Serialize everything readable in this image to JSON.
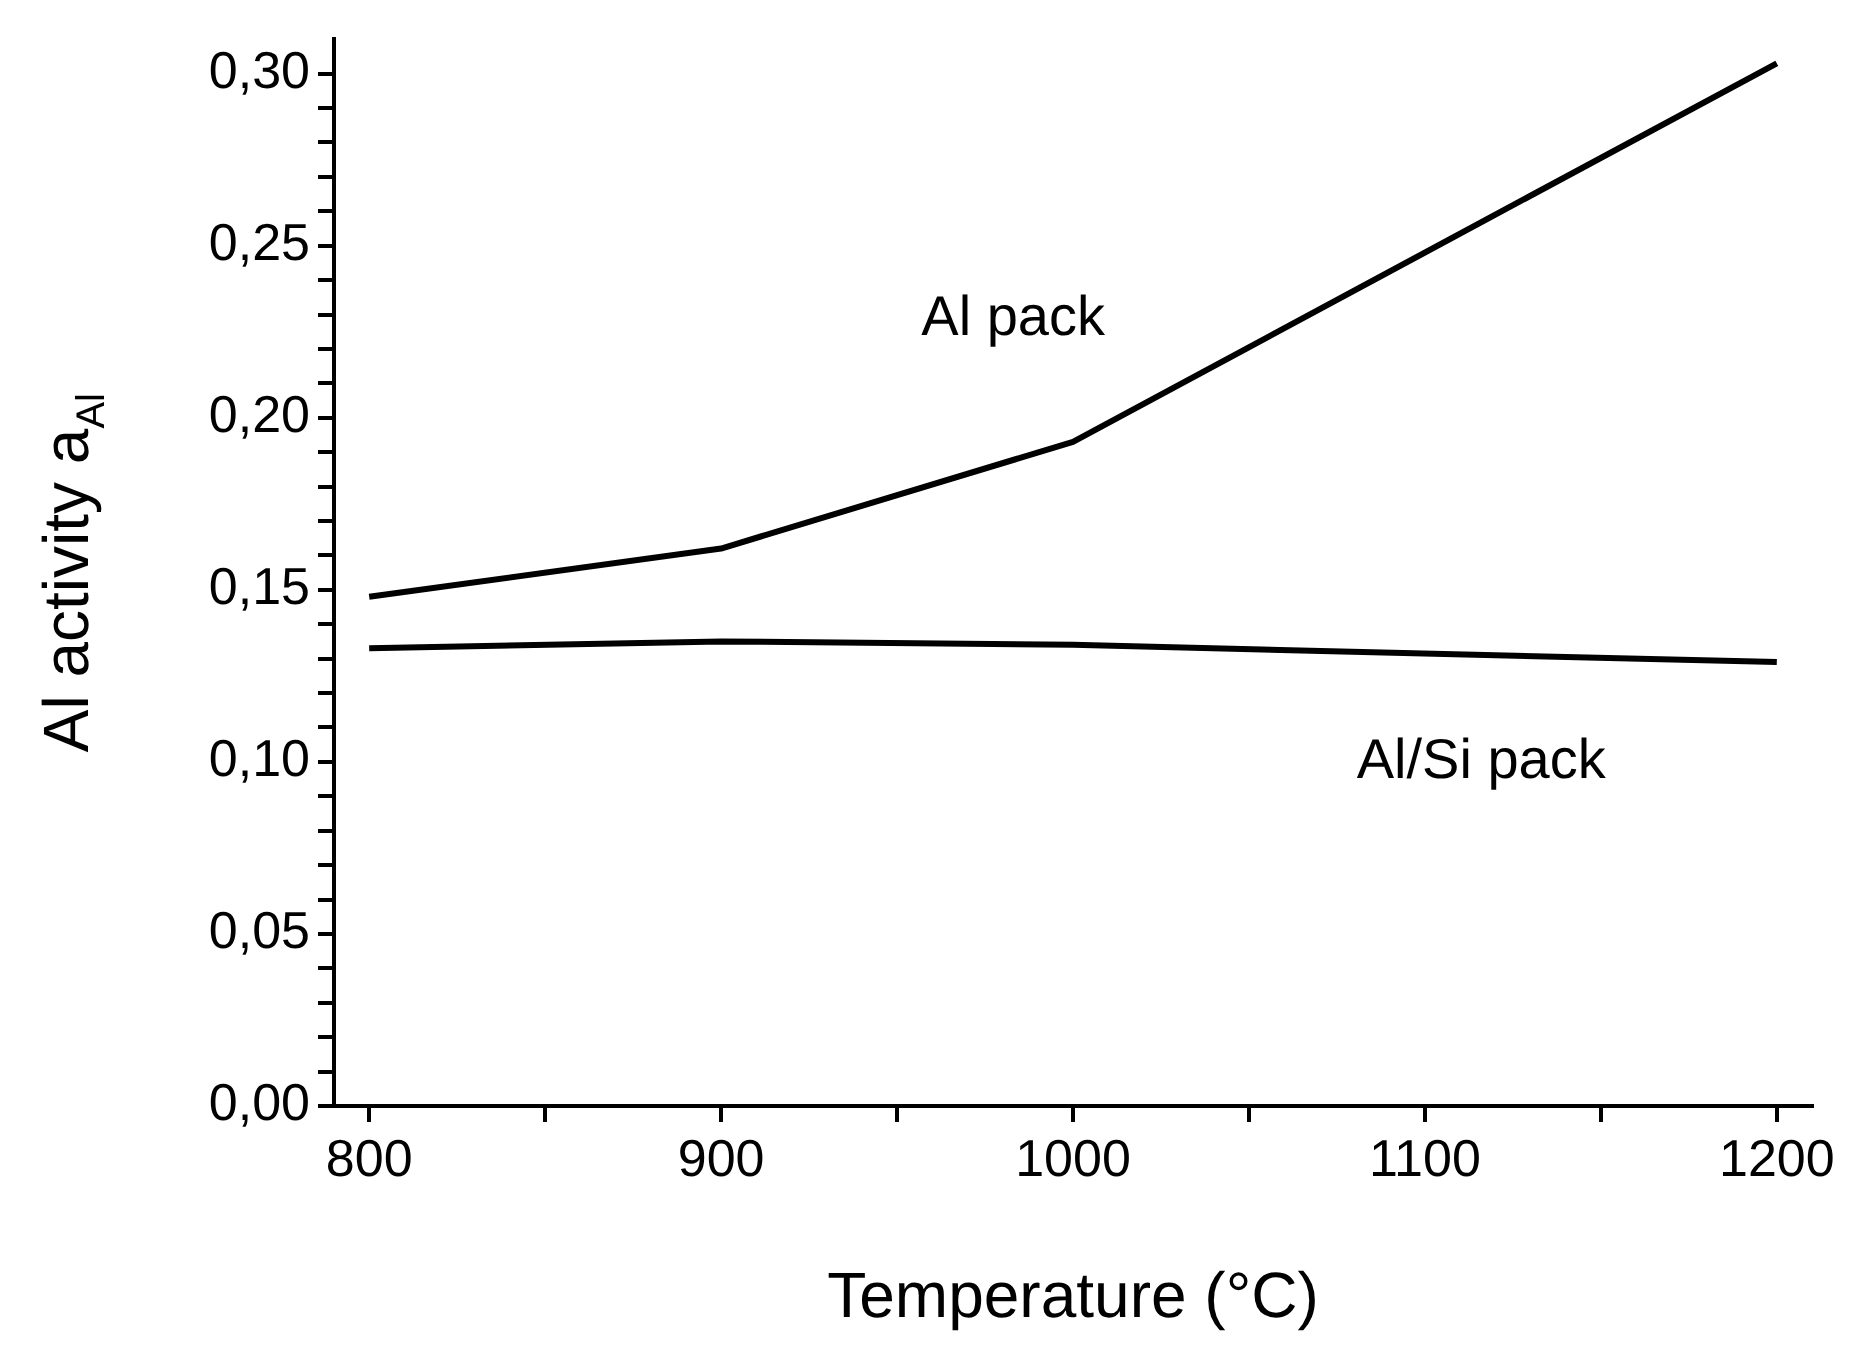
{
  "chart_data": {
    "type": "line",
    "xlabel": "Temperature (°C)",
    "ylabel": "Al activity a$_{Al}$",
    "x": [
      800,
      900,
      1000,
      1200
    ],
    "series": [
      {
        "name": "Al pack",
        "color": "#000000",
        "values": [
          0.148,
          0.162,
          0.193,
          0.303
        ]
      },
      {
        "name": "Al/Si pack",
        "color": "#000000",
        "values": [
          0.133,
          0.135,
          0.134,
          0.129
        ]
      }
    ],
    "xlim": [
      790,
      1210
    ],
    "xticks": [
      800,
      {
        "value": 850,
        "label": null
      },
      900,
      {
        "value": 950,
        "label": null
      },
      1000,
      {
        "value": 1050,
        "label": null
      },
      1100,
      {
        "value": 1150,
        "label": null
      },
      1200
    ],
    "ylim": [
      0,
      0.31
    ],
    "yticks": [
      {
        "value": 0,
        "label": "0,00"
      },
      {
        "value": 0.01,
        "label": null
      },
      {
        "value": 0.02,
        "label": null
      },
      {
        "value": 0.03,
        "label": null
      },
      {
        "value": 0.04,
        "label": null
      },
      {
        "value": 0.05,
        "label": "0,05"
      },
      {
        "value": 0.06,
        "label": null
      },
      {
        "value": 0.07,
        "label": null
      },
      {
        "value": 0.08,
        "label": null
      },
      {
        "value": 0.09,
        "label": null
      },
      {
        "value": 0.1,
        "label": "0,10"
      },
      {
        "value": 0.11,
        "label": null
      },
      {
        "value": 0.12,
        "label": null
      },
      {
        "value": 0.13,
        "label": null
      },
      {
        "value": 0.14,
        "label": null
      },
      {
        "value": 0.15,
        "label": "0,15"
      },
      {
        "value": 0.16,
        "label": null
      },
      {
        "value": 0.17,
        "label": null
      },
      {
        "value": 0.18,
        "label": null
      },
      {
        "value": 0.19,
        "label": null
      },
      {
        "value": 0.2,
        "label": "0,20"
      },
      {
        "value": 0.21,
        "label": null
      },
      {
        "value": 0.22,
        "label": null
      },
      {
        "value": 0.23,
        "label": null
      },
      {
        "value": 0.24,
        "label": null
      },
      {
        "value": 0.25,
        "label": "0,25"
      },
      {
        "value": 0.26,
        "label": null
      },
      {
        "value": 0.27,
        "label": null
      },
      {
        "value": 0.28,
        "label": null
      },
      {
        "value": 0.29,
        "label": null
      },
      {
        "value": 0.3,
        "label": "0,30"
      }
    ],
    "grid": false,
    "legend": false,
    "marker": "none",
    "line_style": "solid"
  }
}
